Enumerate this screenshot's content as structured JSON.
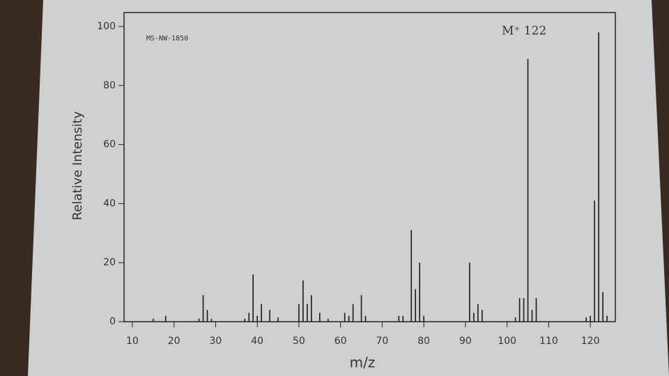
{
  "chart_data": {
    "type": "stem",
    "title": "MS-NW-1850",
    "annotation": "M⁺ 122",
    "x_label": "m/z",
    "y_label": "Relative Intensity",
    "x": [
      15,
      18,
      26,
      27,
      28,
      29,
      37,
      38,
      39,
      40,
      41,
      43,
      45,
      50,
      51,
      52,
      53,
      55,
      57,
      61,
      62,
      63,
      65,
      66,
      74,
      75,
      77,
      78,
      79,
      80,
      91,
      92,
      93,
      94,
      102,
      103,
      104,
      105,
      106,
      107,
      119,
      120,
      121,
      122,
      123,
      124
    ],
    "values": [
      1,
      2,
      1,
      9,
      4,
      1,
      1,
      3,
      16,
      2,
      6,
      4,
      1.5,
      6,
      14,
      6,
      9,
      3,
      1,
      3,
      2,
      6,
      9,
      2,
      2,
      2,
      31,
      11,
      20,
      2,
      20,
      3,
      6,
      4,
      1.5,
      8,
      8,
      89,
      4,
      8,
      1.5,
      2,
      41,
      98,
      10,
      2
    ],
    "color": "#1a1a1a",
    "xlim": [
      8,
      126
    ],
    "ylim": [
      0,
      100
    ],
    "xticks": [
      10,
      20,
      30,
      40,
      50,
      60,
      70,
      80,
      90,
      100,
      110,
      120
    ],
    "yticks": [
      0,
      20,
      40,
      60,
      80,
      100
    ]
  }
}
